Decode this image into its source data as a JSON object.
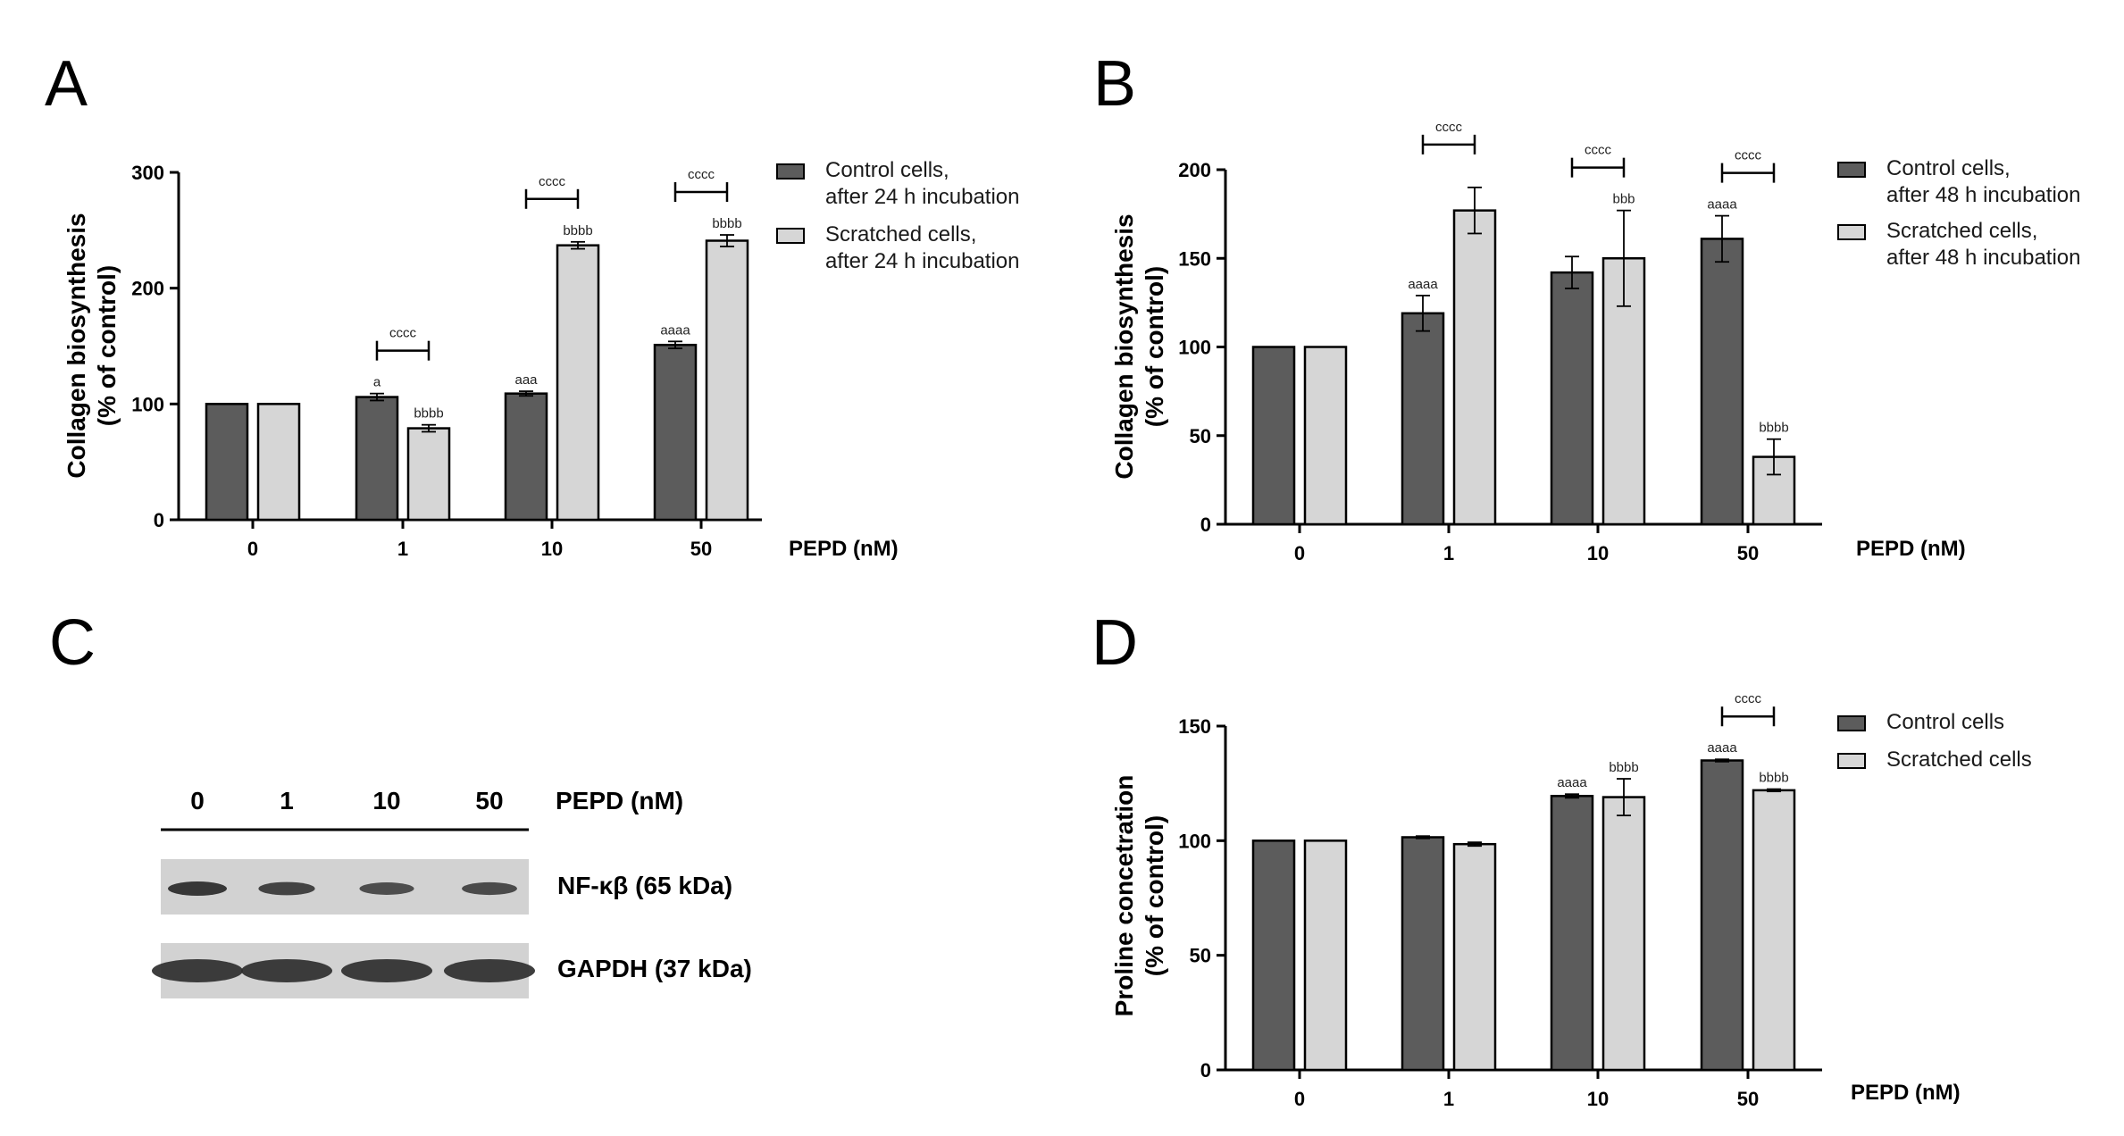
{
  "colors": {
    "control": "#5c5c5c",
    "scratched": "#d6d6d6",
    "blot_bg": "#d2d2d2",
    "band": "#2e2e2e"
  },
  "panel_letters": [
    "A",
    "B",
    "C",
    "D"
  ],
  "chart_data": [
    {
      "panel": "A",
      "type": "bar",
      "title": "",
      "categories": [
        "0",
        "1",
        "10",
        "50"
      ],
      "xlabel": "PEPD (nM)",
      "ylabel_line1": "Collagen biosynthesis",
      "ylabel_line2": "(% of control)",
      "ylim": [
        0,
        300
      ],
      "yticks": [
        "0",
        "100",
        "200",
        "300"
      ],
      "series": [
        {
          "name_line1": "Control cells,",
          "name_line2": "after 24 h incubation",
          "color": "#5c5c5c",
          "values": [
            100,
            106,
            109,
            151
          ],
          "errors": [
            0,
            3,
            2,
            3
          ],
          "sig": [
            "",
            "a",
            "aaa",
            "aaaa"
          ]
        },
        {
          "name_line1": "Scratched cells,",
          "name_line2": "after 24 h incubation",
          "color": "#d6d6d6",
          "values": [
            100,
            79,
            237,
            241
          ],
          "errors": [
            0,
            3,
            3,
            5
          ],
          "sig": [
            "",
            "bbbb",
            "bbbb",
            "bbbb"
          ]
        }
      ],
      "brackets": [
        {
          "category_index": 1,
          "label": "cccc"
        },
        {
          "category_index": 2,
          "label": "cccc"
        },
        {
          "category_index": 3,
          "label": "cccc"
        }
      ]
    },
    {
      "panel": "B",
      "type": "bar",
      "title": "",
      "categories": [
        "0",
        "1",
        "10",
        "50"
      ],
      "xlabel": "PEPD (nM)",
      "ylabel_line1": "Collagen biosynthesis",
      "ylabel_line2": "(% of control)",
      "ylim": [
        0,
        200
      ],
      "yticks": [
        "0",
        "50",
        "100",
        "150",
        "200"
      ],
      "series": [
        {
          "name_line1": "Control cells,",
          "name_line2": "after 48 h incubation",
          "color": "#5c5c5c",
          "values": [
            100,
            119,
            142,
            161
          ],
          "errors": [
            0,
            10,
            9,
            13
          ],
          "sig": [
            "",
            "aaaa",
            "",
            "aaaa"
          ]
        },
        {
          "name_line1": "Scratched cells,",
          "name_line2": "after 48 h incubation",
          "color": "#d6d6d6",
          "values": [
            100,
            177,
            150,
            38
          ],
          "errors": [
            0,
            13,
            27,
            10
          ],
          "sig": [
            "",
            "",
            "bbb",
            "bbbb"
          ]
        }
      ],
      "brackets": [
        {
          "category_index": 1,
          "label": "cccc"
        },
        {
          "category_index": 2,
          "label": "cccc"
        },
        {
          "category_index": 3,
          "label": "cccc"
        }
      ]
    },
    {
      "panel": "D",
      "type": "bar",
      "title": "",
      "categories": [
        "0",
        "1",
        "10",
        "50"
      ],
      "xlabel": "PEPD (nM)",
      "ylabel_line1": "Proline concetration",
      "ylabel_line2": "(% of control)",
      "ylim": [
        0,
        150
      ],
      "yticks": [
        "0",
        "50",
        "100",
        "150"
      ],
      "series": [
        {
          "name_line1": "Control cells",
          "name_line2": "",
          "color": "#5c5c5c",
          "values": [
            100,
            101.5,
            119.5,
            135
          ],
          "errors": [
            0,
            0.5,
            0.8,
            0.5
          ],
          "sig": [
            "",
            "",
            "aaaa",
            "aaaa"
          ]
        },
        {
          "name_line1": "Scratched cells",
          "name_line2": "",
          "color": "#d6d6d6",
          "values": [
            100,
            98.5,
            119,
            122
          ],
          "errors": [
            0,
            0.8,
            8,
            0.5
          ],
          "sig": [
            "",
            "",
            "bbbb",
            "bbbb"
          ]
        }
      ],
      "brackets": [
        {
          "category_index": 3,
          "label": "cccc"
        }
      ]
    }
  ],
  "blot": {
    "panel": "C",
    "lanes": [
      "0",
      "1",
      "10",
      "50"
    ],
    "lanes_unit": "PEPD (nM)",
    "rows": [
      {
        "label": "NF-κβ (65 kDa)",
        "intensity": [
          1.0,
          0.8,
          0.65,
          0.7
        ]
      },
      {
        "label": "GAPDH (37 kDa)",
        "intensity": [
          1.0,
          1.0,
          1.0,
          1.0
        ]
      }
    ]
  }
}
